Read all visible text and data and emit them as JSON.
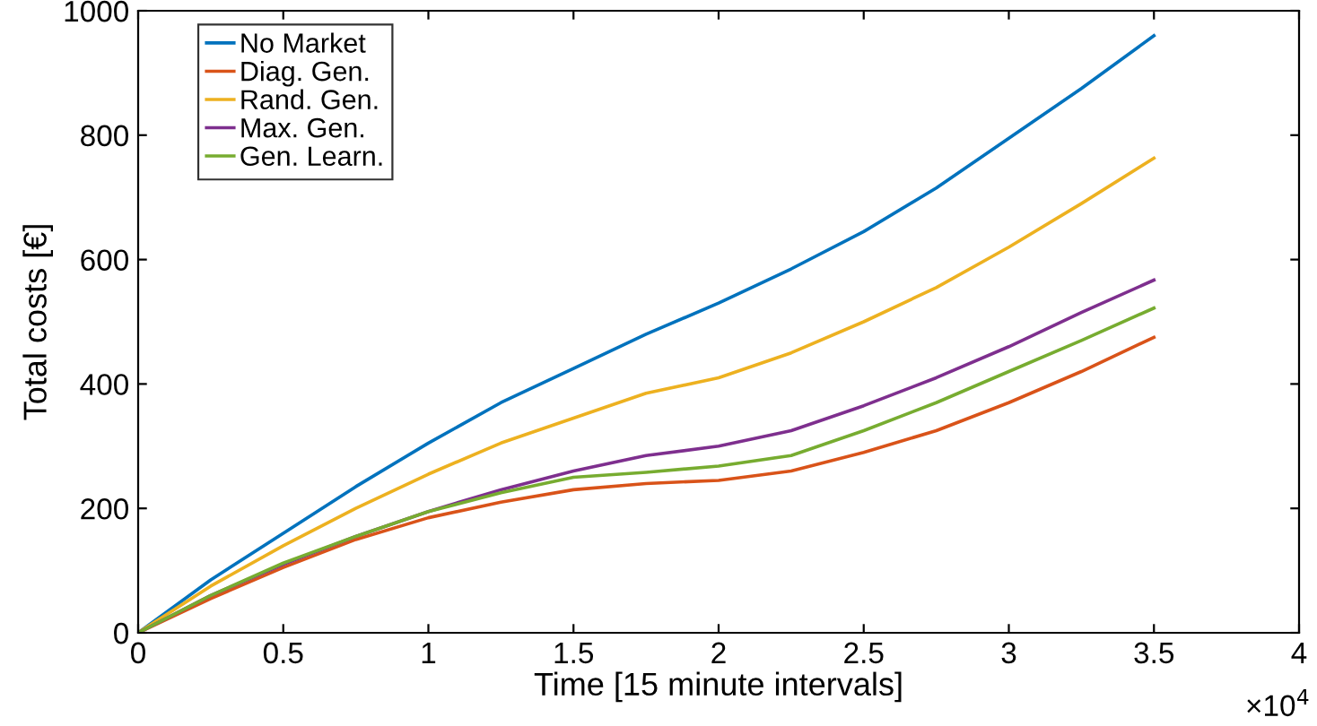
{
  "chart_data": {
    "type": "line",
    "xlabel": "Time [15 minute intervals]",
    "ylabel": "Total costs [€]",
    "x": [
      0,
      0.25,
      0.5,
      0.75,
      1,
      1.25,
      1.5,
      1.75,
      2,
      2.25,
      2.5,
      2.75,
      3,
      3.25,
      3.5
    ],
    "series": [
      {
        "name": "No Market",
        "color": "#0072bd",
        "values": [
          0,
          85,
          160,
          235,
          305,
          370,
          425,
          480,
          530,
          585,
          645,
          715,
          795,
          875,
          960
        ]
      },
      {
        "name": "Diag. Gen.",
        "color": "#d95319",
        "values": [
          0,
          55,
          105,
          150,
          185,
          210,
          230,
          240,
          245,
          260,
          290,
          325,
          370,
          420,
          475
        ]
      },
      {
        "name": "Rand. Gen.",
        "color": "#edb120",
        "values": [
          0,
          75,
          140,
          200,
          255,
          305,
          345,
          385,
          410,
          450,
          500,
          555,
          620,
          690,
          763
        ]
      },
      {
        "name": "Max. Gen.",
        "color": "#7e2f8e",
        "values": [
          0,
          60,
          110,
          155,
          195,
          230,
          260,
          285,
          300,
          325,
          365,
          410,
          460,
          515,
          567
        ]
      },
      {
        "name": "Gen. Learn.",
        "color": "#77ac30",
        "values": [
          0,
          60,
          112,
          155,
          195,
          225,
          250,
          258,
          268,
          285,
          325,
          370,
          420,
          470,
          522
        ]
      }
    ],
    "xlim": [
      0,
      4
    ],
    "xticks": [
      0,
      0.5,
      1,
      1.5,
      2,
      2.5,
      3,
      3.5,
      4
    ],
    "ylim": [
      0,
      1000
    ],
    "yticks": [
      0,
      200,
      400,
      600,
      800,
      1000
    ],
    "annotations": [
      "×10$^{4}$"
    ],
    "legend": "top left",
    "grid": false,
    "line_style": "solid",
    "marker": "none"
  }
}
